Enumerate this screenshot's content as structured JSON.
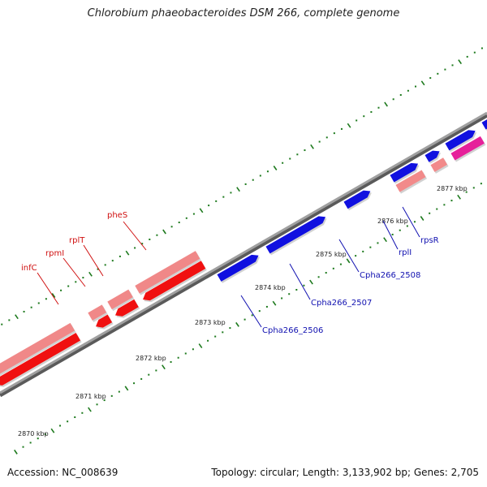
{
  "title": "Chlorobium phaeobacteroides DSM 266, complete genome",
  "footer": {
    "accession": "Accession: NC_008639",
    "summary": "Topology: circular; Length: 3,133,902 bp; Genes: 2,705"
  },
  "colors": {
    "genome_line": "#8c8c8c",
    "tick": "#1e7a1e",
    "forward_gene": "#1010e0",
    "reverse_gene": "#f01010",
    "reverse_cds": "#f08888",
    "forward_cds": "#e6209a",
    "forward_cds_light": "#f28a8a",
    "label_forward": "#1010b0",
    "label_reverse": "#d01010"
  },
  "ticks": [
    {
      "label": "2870 kbp"
    },
    {
      "label": "2871 kbp"
    },
    {
      "label": "2872 kbp"
    },
    {
      "label": "2873 kbp"
    },
    {
      "label": "2874 kbp"
    },
    {
      "label": "2875 kbp"
    },
    {
      "label": "2876 kbp"
    },
    {
      "label": "2877 kbp"
    }
  ],
  "gene_labels": [
    {
      "name": "infC",
      "strand": "reverse"
    },
    {
      "name": "rpmI",
      "strand": "reverse"
    },
    {
      "name": "rplT",
      "strand": "reverse"
    },
    {
      "name": "pheS",
      "strand": "reverse"
    },
    {
      "name": "Cpha266_2506",
      "strand": "forward"
    },
    {
      "name": "Cpha266_2507",
      "strand": "forward"
    },
    {
      "name": "Cpha266_2508",
      "strand": "forward"
    },
    {
      "name": "rplI",
      "strand": "forward"
    },
    {
      "name": "rpsR",
      "strand": "forward"
    }
  ]
}
